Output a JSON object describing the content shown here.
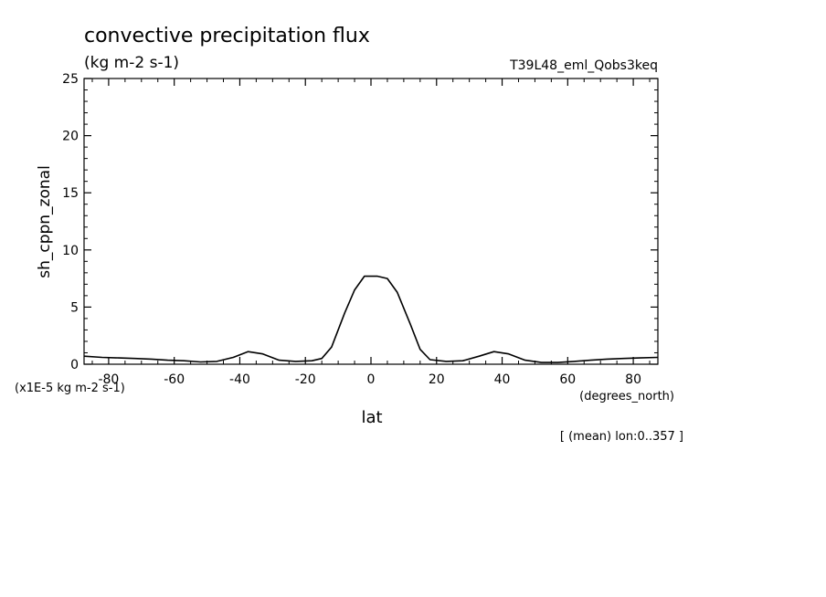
{
  "chart_data": {
    "type": "line",
    "title": "convective precipitation flux",
    "units_label": "(kg m-2 s-1)",
    "run_label": "T39L48_eml_Qobs3keq",
    "xlabel": "lat",
    "x_units_label": "(degrees_north)",
    "ylabel": "sh_cppn_zonal",
    "y_scale_label": "(x1E-5 kg m-2 s-1)",
    "footer": "[ (mean) lon:0..357 ]",
    "xlim": [
      -87.5,
      87.5
    ],
    "ylim": [
      0,
      25
    ],
    "x_ticks": [
      -80,
      -60,
      -40,
      -20,
      0,
      20,
      40,
      60,
      80
    ],
    "x_tick_labels": [
      "-80",
      "-60",
      "-40",
      "-20",
      "0",
      "20",
      "40",
      "60",
      "80"
    ],
    "y_ticks": [
      0,
      5,
      10,
      15,
      20,
      25
    ],
    "y_tick_labels": [
      "0",
      "5",
      "10",
      "15",
      "20",
      "25"
    ],
    "grid": false,
    "line_color": "#000000",
    "series": [
      {
        "x": [
          -87.5,
          -82,
          -77,
          -72,
          -67,
          -62,
          -57,
          -52,
          -47,
          -42,
          -37.5,
          -33,
          -28,
          -23,
          -18,
          -15,
          -12,
          -8,
          -5,
          -2,
          2,
          5,
          8,
          12,
          15,
          18,
          23,
          28,
          33,
          37.5,
          42,
          47,
          52,
          57,
          62,
          67,
          72,
          77,
          82,
          87.5
        ],
        "y": [
          0.7,
          0.6,
          0.55,
          0.5,
          0.45,
          0.35,
          0.3,
          0.2,
          0.25,
          0.6,
          1.1,
          0.9,
          0.35,
          0.25,
          0.3,
          0.5,
          1.5,
          4.5,
          6.5,
          7.7,
          7.7,
          7.5,
          6.3,
          3.5,
          1.3,
          0.4,
          0.25,
          0.3,
          0.7,
          1.1,
          0.9,
          0.35,
          0.15,
          0.15,
          0.25,
          0.35,
          0.45,
          0.5,
          0.55,
          0.6
        ]
      }
    ]
  }
}
